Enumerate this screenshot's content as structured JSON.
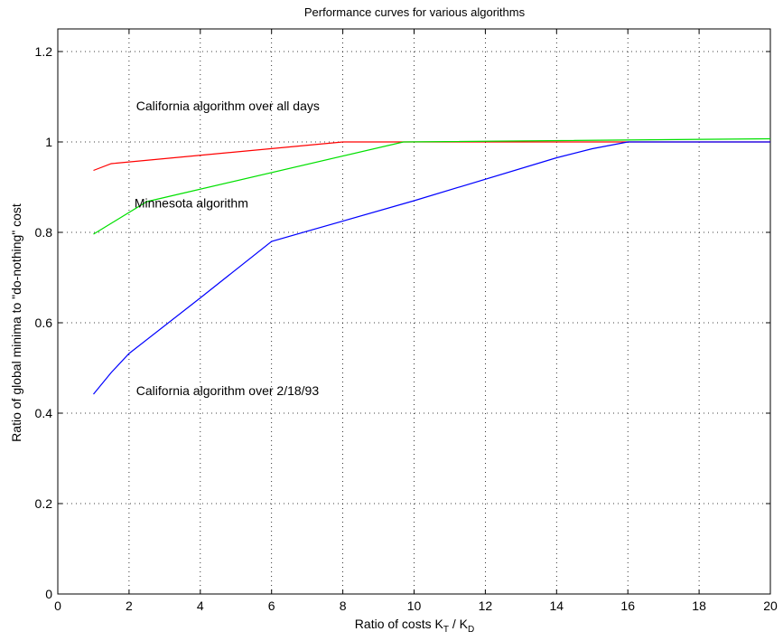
{
  "chart_data": {
    "type": "line",
    "title": "Performance curves for various algorithms",
    "xlabel": {
      "text": "Ratio of costs K",
      "sub1": "T",
      "mid": " / K",
      "sub2": "D"
    },
    "ylabel": "Ratio of global minima to \"do-nothing\" cost",
    "xlim": [
      0,
      20
    ],
    "ylim": [
      0,
      1.25
    ],
    "xticks": [
      0,
      2,
      4,
      6,
      8,
      10,
      12,
      14,
      16,
      18,
      20
    ],
    "yticks": [
      0,
      0.2,
      0.4,
      0.6,
      0.8,
      1,
      1.2
    ],
    "ytick_labels": [
      "0",
      "0.2",
      "0.4",
      "0.6",
      "0.8",
      "1",
      "1.2"
    ],
    "grid": true,
    "series": [
      {
        "color": "#ff0000",
        "x": [
          1,
          1.5,
          8,
          20
        ],
        "y": [
          0.937,
          0.952,
          1.0,
          1.0
        ]
      },
      {
        "color": "#00e000",
        "x": [
          1,
          2.5,
          9.7,
          20
        ],
        "y": [
          0.796,
          0.868,
          1.0,
          1.007
        ]
      },
      {
        "color": "#0000ff",
        "x": [
          1,
          1.5,
          2,
          4,
          6,
          10,
          14,
          15,
          16,
          20
        ],
        "y": [
          0.442,
          0.49,
          0.532,
          0.655,
          0.78,
          0.87,
          0.965,
          0.985,
          1.0,
          1.0
        ]
      }
    ],
    "annotations": [
      {
        "text": "California algorithm over all days",
        "x": 2.2,
        "y": 1.07
      },
      {
        "text": "Minnesota algorithm",
        "x": 2.15,
        "y": 0.855
      },
      {
        "text": "California algorithm over 2/18/93",
        "x": 2.2,
        "y": 0.44
      }
    ]
  }
}
